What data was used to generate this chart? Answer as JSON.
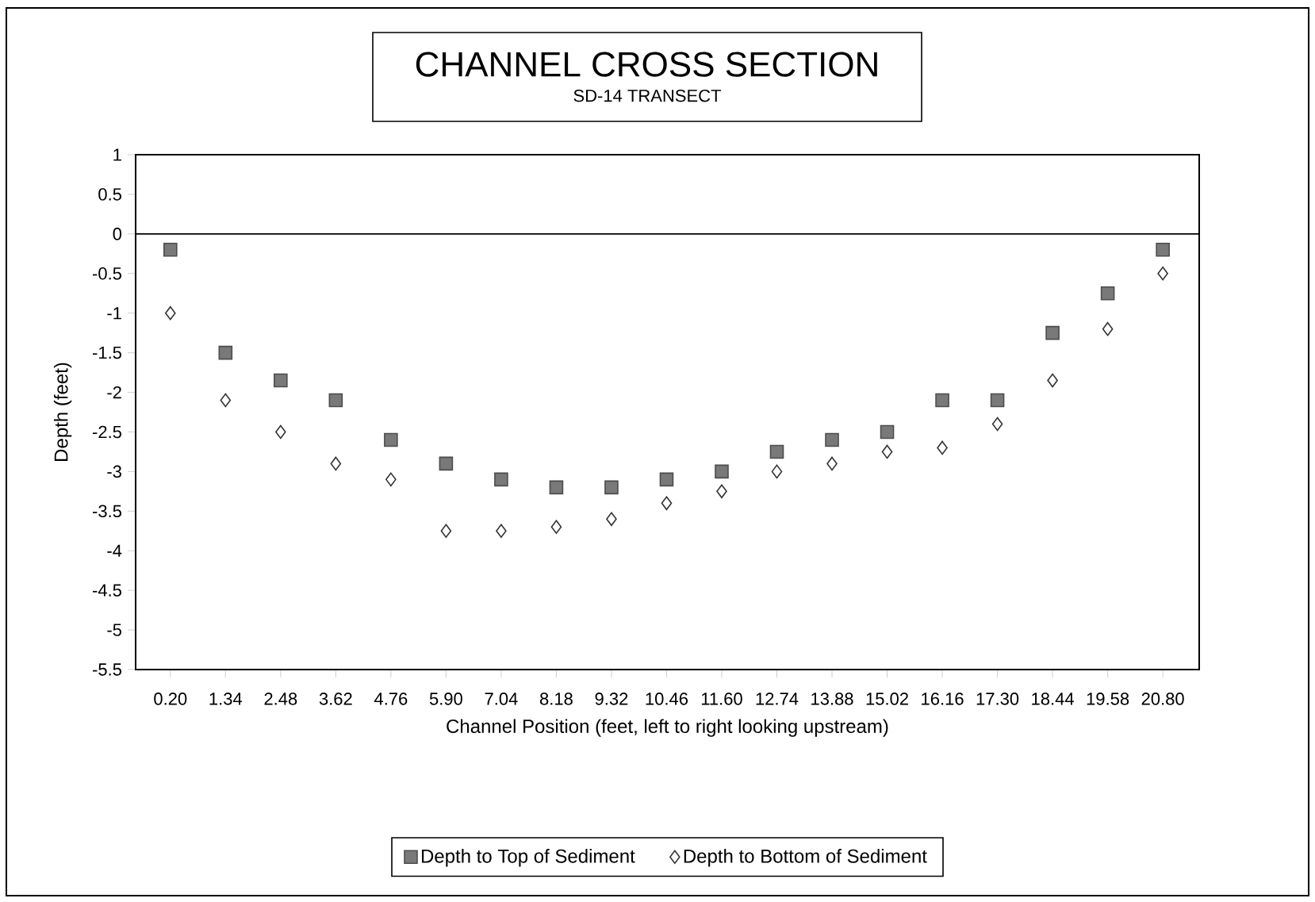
{
  "chart_data": {
    "type": "scatter",
    "title": "CHANNEL CROSS SECTION",
    "subtitle": "SD-14 TRANSECT",
    "xlabel": "Channel Position (feet, left to right looking upstream)",
    "ylabel": "Depth (feet)",
    "categories": [
      "0.20",
      "1.34",
      "2.48",
      "3.62",
      "4.76",
      "5.90",
      "7.04",
      "8.18",
      "9.32",
      "10.46",
      "11.60",
      "12.74",
      "13.88",
      "15.02",
      "16.16",
      "17.30",
      "18.44",
      "19.58",
      "20.80"
    ],
    "series": [
      {
        "name": "Depth to Top of Sediment",
        "color": "#4d4d4d",
        "marker": "square",
        "values": [
          -0.2,
          -1.5,
          -1.85,
          -2.1,
          -2.6,
          -2.9,
          -3.1,
          -3.2,
          -3.2,
          -3.1,
          -3.0,
          -2.75,
          -2.6,
          -2.5,
          -2.1,
          -2.1,
          -1.25,
          -0.75,
          -0.2
        ]
      },
      {
        "name": "Depth to Bottom of Sediment",
        "color": "#333333",
        "marker": "diamond",
        "values": [
          -1.0,
          -2.1,
          -2.5,
          -2.9,
          -3.1,
          -3.75,
          -3.75,
          -3.7,
          -3.6,
          -3.4,
          -3.25,
          -3.0,
          -2.9,
          -2.75,
          -2.7,
          -2.4,
          -1.85,
          -1.2,
          -0.5
        ]
      }
    ],
    "ylim": [
      -5.5,
      1
    ],
    "yticks": [
      1,
      0.5,
      0,
      -0.5,
      -1,
      -1.5,
      -2,
      -2.5,
      -3,
      -3.5,
      -4,
      -4.5,
      -5,
      -5.5
    ],
    "ref_lines": [
      {
        "axis": "y",
        "value": 0
      }
    ],
    "grid": false,
    "legend": "bottom"
  }
}
